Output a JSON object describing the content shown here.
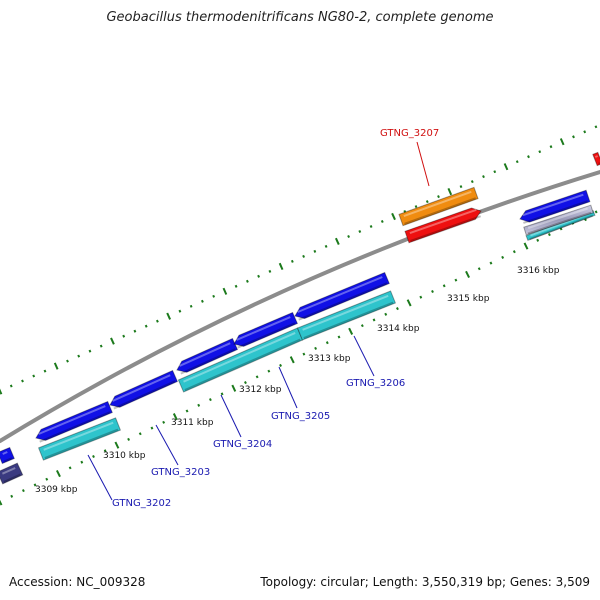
{
  "title": "Geobacillus thermodenitrificans NG80-2, complete genome",
  "footer": {
    "accession": "Accession: NC_009328",
    "topology": "Topology: circular; Length: 3,550,319 bp; Genes: 3,509"
  },
  "colors": {
    "backbone": "#8c8c8c",
    "ticks": "#1c7a1c",
    "blue_gene": "#1010e6",
    "cyan_gene": "#2ec4cc",
    "orange_gene": "#f08c10",
    "red_gene": "#ee1010",
    "blue_label": "#1a1ab0",
    "red_label": "#d01010"
  },
  "kbp_labels": [
    "3309 kbp",
    "3310 kbp",
    "3311 kbp",
    "3312 kbp",
    "3313 kbp",
    "3314 kbp",
    "3315 kbp",
    "3316 kbp"
  ],
  "gene_labels": [
    {
      "text": "GTNG_3202",
      "color": "blue_label"
    },
    {
      "text": "GTNG_3203",
      "color": "blue_label"
    },
    {
      "text": "GTNG_3204",
      "color": "blue_label"
    },
    {
      "text": "GTNG_3205",
      "color": "blue_label"
    },
    {
      "text": "GTNG_3206",
      "color": "blue_label"
    },
    {
      "text": "GTNG_3207",
      "color": "red_label"
    }
  ]
}
